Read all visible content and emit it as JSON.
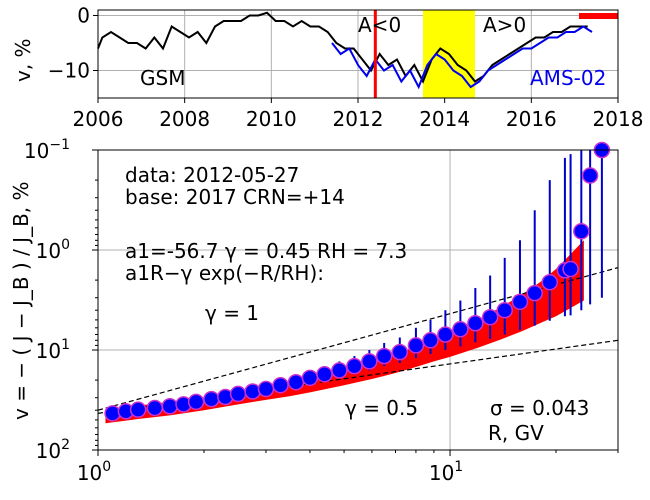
{
  "top_panel": {
    "ylabel": "v, %",
    "x_ticks": [
      "2006",
      "2008",
      "2010",
      "2012",
      "2014",
      "2016",
      "2018"
    ],
    "y_ticks": [
      "0",
      "−10"
    ],
    "labels": {
      "gsm": "GSM",
      "ams": "AMS-02",
      "a_neg": "A<0",
      "a_pos": "A>0"
    }
  },
  "bottom_panel": {
    "ylabel": "v = − ( J − J_B ) / J_B, %",
    "xlabel": "R, GV",
    "annotations": {
      "data_date": "data: 2012-05-27",
      "base": "base: 2017   CRN=+14",
      "params": "a1=-56.7  γ = 0.45  RH =  7.3",
      "formula": "a1R−γ exp(−R/RH):",
      "gamma1": "γ = 1",
      "gamma05": "γ = 0.5",
      "sigma": "σ = 0.043"
    }
  },
  "colors": {
    "gsm_line": "#000000",
    "ams_line": "#0000ee",
    "event_line": "#ff0000",
    "a_pos_band": "#ffff00",
    "fit_band": "#ff0000",
    "points_fill": "#0000ff",
    "points_edge": "#cc33cc",
    "error_bars": "#0000cc"
  },
  "chart_data": [
    {
      "type": "line",
      "ylabel": "v, %",
      "xlim": [
        2006,
        2018
      ],
      "ylim": [
        -15,
        1
      ],
      "event_date": 2012.4,
      "a_pos_band": [
        2013.5,
        2014.7
      ],
      "ams_period_marker": [
        2017.1,
        2018
      ],
      "series": [
        {
          "name": "GSM",
          "x": [
            2006.0,
            2006.1,
            2006.3,
            2006.5,
            2006.7,
            2006.9,
            2007.1,
            2007.3,
            2007.5,
            2007.7,
            2007.9,
            2008.1,
            2008.3,
            2008.5,
            2008.7,
            2008.9,
            2009.1,
            2009.3,
            2009.5,
            2009.7,
            2009.9,
            2010.1,
            2010.3,
            2010.5,
            2010.7,
            2010.9,
            2011.1,
            2011.3,
            2011.5,
            2011.7,
            2011.9,
            2012.1,
            2012.3,
            2012.5,
            2012.7,
            2012.9,
            2013.1,
            2013.3,
            2013.5,
            2013.7,
            2013.9,
            2014.1,
            2014.3,
            2014.5,
            2014.7,
            2014.9,
            2015.1,
            2015.3,
            2015.5,
            2015.7,
            2015.9,
            2016.1,
            2016.3,
            2016.5,
            2016.7,
            2016.9,
            2017.1,
            2017.3
          ],
          "y": [
            -6,
            -4,
            -3,
            -4,
            -5,
            -5,
            -6,
            -4,
            -6,
            -2,
            -3,
            -4,
            -3,
            -5,
            -2,
            -1,
            -1,
            -1,
            0,
            0,
            0.5,
            -1,
            -1,
            -2,
            -1,
            -2,
            -2,
            -3,
            -5,
            -6,
            -6,
            -8,
            -10,
            -7,
            -9,
            -8,
            -11,
            -9,
            -12,
            -8,
            -6,
            -7,
            -9,
            -10,
            -12,
            -11,
            -9,
            -8,
            -7,
            -6,
            -5,
            -4,
            -4,
            -3,
            -3,
            -2,
            -2,
            -2
          ]
        },
        {
          "name": "AMS-02",
          "x": [
            2011.4,
            2011.6,
            2011.8,
            2012.0,
            2012.2,
            2012.4,
            2012.6,
            2012.8,
            2013.0,
            2013.2,
            2013.4,
            2013.6,
            2013.8,
            2014.0,
            2014.2,
            2014.4,
            2014.6,
            2014.8,
            2015.0,
            2015.2,
            2015.4,
            2015.6,
            2015.8,
            2016.0,
            2016.2,
            2016.4,
            2016.6,
            2016.8,
            2017.0,
            2017.2,
            2017.4
          ],
          "y": [
            -5,
            -7,
            -6,
            -9,
            -11,
            -8,
            -10,
            -9,
            -12,
            -10,
            -13,
            -9,
            -7,
            -8,
            -10,
            -11,
            -13,
            -12,
            -10,
            -9,
            -8,
            -7,
            -6,
            -6,
            -5,
            -4,
            -4,
            -3,
            -3,
            -2,
            -3
          ]
        }
      ]
    },
    {
      "type": "scatter",
      "xlabel": "R, GV",
      "x_scale": "log",
      "y_scale": "log",
      "xlim": [
        1,
        30
      ],
      "ylim": [
        100,
        0.1
      ],
      "x_ticks": [
        "10^0",
        "10^1"
      ],
      "y_ticks": [
        "10^-1",
        "10^0",
        "10^1",
        "10^2"
      ],
      "points": {
        "x": [
          1.1,
          1.2,
          1.3,
          1.45,
          1.6,
          1.75,
          1.9,
          2.1,
          2.3,
          2.5,
          2.75,
          3.0,
          3.3,
          3.65,
          4.0,
          4.4,
          4.85,
          5.35,
          5.9,
          6.5,
          7.2,
          8.0,
          8.8,
          9.7,
          10.7,
          11.8,
          13.0,
          14.3,
          15.8,
          17.4,
          19.2,
          21.2,
          22.0,
          23.6,
          25.0,
          27.0
        ],
        "y": [
          43,
          41,
          39.5,
          38,
          36.5,
          35,
          33,
          31,
          29.5,
          27.5,
          26,
          24.5,
          22.5,
          21,
          19,
          17.5,
          16,
          14.5,
          13,
          11.5,
          10.5,
          9,
          8,
          7,
          6.2,
          5.4,
          4.7,
          4.0,
          3.3,
          2.7,
          2.1,
          1.6,
          1.55,
          0.65,
          0.18,
          0.1
        ],
        "err_upper": [
          40,
          38.5,
          37,
          35.5,
          34,
          32.5,
          30.5,
          28.5,
          27,
          25,
          23.5,
          22,
          20,
          18.5,
          16.5,
          15,
          13,
          11.5,
          10,
          8.5,
          7.5,
          6.0,
          5.0,
          4.0,
          3.2,
          2.4,
          1.8,
          1.2,
          0.8,
          0.4,
          0.2,
          0.12,
          0.11,
          0.1,
          0.1,
          0.1
        ],
        "err_lower": [
          46,
          43.5,
          42,
          40.5,
          39,
          37.5,
          35.5,
          33.5,
          32,
          30,
          28.5,
          27,
          25,
          23.5,
          21.5,
          20,
          19,
          17.5,
          16,
          14.5,
          13.5,
          12,
          11,
          10,
          9.2,
          8.4,
          7.7,
          7.0,
          6.3,
          5.7,
          5.1,
          4.6,
          4.5,
          4.0,
          3.5,
          3.0
        ]
      },
      "fit_band": {
        "x": [
          1.05,
          1.3,
          1.6,
          2.0,
          2.5,
          3.0,
          3.5,
          4.0,
          5.0,
          6.0,
          7.0,
          8.0,
          9.0,
          10.0,
          12.0,
          14.0,
          16.0,
          18.0,
          20.0,
          22.0,
          24.0
        ],
        "y_upper": [
          40,
          36,
          33,
          30,
          26,
          23,
          21,
          19,
          15.5,
          13,
          11,
          9.2,
          7.9,
          6.8,
          5.0,
          3.7,
          2.8,
          2.1,
          1.55,
          1.1,
          0.8
        ],
        "y_lower": [
          54,
          49,
          45,
          40,
          35,
          31.5,
          29,
          26.5,
          22.5,
          19.5,
          17,
          14.8,
          13,
          11.7,
          9.5,
          7.8,
          6.5,
          5.4,
          4.6,
          3.8,
          3.2
        ]
      },
      "reference_lines": [
        {
          "label": "γ = 1",
          "x": [
            1.0,
            30.0
          ],
          "y": [
            40,
            1.5
          ]
        },
        {
          "label": "γ = 0.5",
          "x": [
            1.0,
            30.0
          ],
          "y": [
            43,
            8
          ]
        }
      ]
    }
  ]
}
